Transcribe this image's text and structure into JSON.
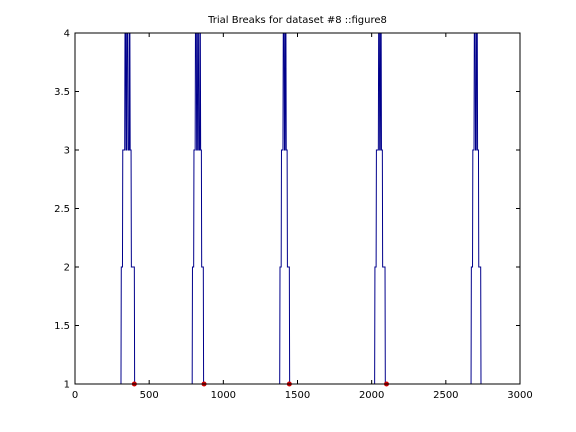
{
  "chart_data": {
    "type": "line",
    "title": "Trial Breaks for dataset #8 ::figure8",
    "xlabel": "",
    "ylabel": "",
    "xlim": [
      0,
      3000
    ],
    "ylim": [
      1,
      4
    ],
    "xticks": [
      0,
      500,
      1000,
      1500,
      2000,
      2500,
      3000
    ],
    "yticks": [
      1,
      1.5,
      2,
      2.5,
      3,
      3.5,
      4
    ],
    "xtick_labels": [
      "0",
      "500",
      "1000",
      "1500",
      "2000",
      "2500",
      "3000"
    ],
    "ytick_labels": [
      "1",
      "1.5",
      "2",
      "2.5",
      "3",
      "3.5",
      "4"
    ],
    "grid": false,
    "series": [
      {
        "color": "#00008b",
        "style": "step",
        "points": [
          [
            310,
            1
          ],
          [
            312,
            2
          ],
          [
            320,
            2
          ],
          [
            322,
            3
          ],
          [
            335,
            3
          ],
          [
            337,
            4
          ],
          [
            342,
            4
          ],
          [
            344,
            3
          ],
          [
            348,
            3
          ],
          [
            350,
            4
          ],
          [
            356,
            4
          ],
          [
            358,
            3
          ],
          [
            365,
            3
          ],
          [
            367,
            4
          ],
          [
            370,
            4
          ],
          [
            372,
            3
          ],
          [
            378,
            3
          ],
          [
            380,
            2
          ],
          [
            400,
            2
          ],
          [
            402,
            1
          ],
          [
            790,
            1
          ],
          [
            792,
            2
          ],
          [
            800,
            2
          ],
          [
            802,
            3
          ],
          [
            810,
            3
          ],
          [
            812,
            4
          ],
          [
            818,
            4
          ],
          [
            820,
            3
          ],
          [
            825,
            3
          ],
          [
            827,
            4
          ],
          [
            832,
            4
          ],
          [
            834,
            3
          ],
          [
            840,
            3
          ],
          [
            842,
            4
          ],
          [
            845,
            4
          ],
          [
            847,
            3
          ],
          [
            852,
            3
          ],
          [
            854,
            2
          ],
          [
            865,
            2
          ],
          [
            867,
            1
          ],
          [
            1380,
            1
          ],
          [
            1382,
            2
          ],
          [
            1390,
            2
          ],
          [
            1392,
            3
          ],
          [
            1402,
            3
          ],
          [
            1404,
            4
          ],
          [
            1410,
            4
          ],
          [
            1412,
            3
          ],
          [
            1416,
            3
          ],
          [
            1418,
            4
          ],
          [
            1422,
            4
          ],
          [
            1424,
            3
          ],
          [
            1430,
            3
          ],
          [
            1432,
            2
          ],
          [
            1445,
            2
          ],
          [
            1447,
            1
          ],
          [
            2020,
            1
          ],
          [
            2022,
            2
          ],
          [
            2030,
            2
          ],
          [
            2032,
            3
          ],
          [
            2045,
            3
          ],
          [
            2047,
            4
          ],
          [
            2052,
            4
          ],
          [
            2054,
            3
          ],
          [
            2058,
            3
          ],
          [
            2060,
            4
          ],
          [
            2064,
            4
          ],
          [
            2066,
            3
          ],
          [
            2072,
            3
          ],
          [
            2074,
            2
          ],
          [
            2090,
            2
          ],
          [
            2092,
            1
          ],
          [
            2670,
            1
          ],
          [
            2672,
            2
          ],
          [
            2680,
            2
          ],
          [
            2682,
            3
          ],
          [
            2690,
            3
          ],
          [
            2692,
            4
          ],
          [
            2698,
            4
          ],
          [
            2700,
            3
          ],
          [
            2705,
            3
          ],
          [
            2707,
            4
          ],
          [
            2712,
            4
          ],
          [
            2714,
            3
          ],
          [
            2720,
            3
          ],
          [
            2722,
            2
          ],
          [
            2735,
            2
          ],
          [
            2737,
            1
          ],
          [
            2750,
            1
          ]
        ]
      }
    ],
    "markers": {
      "color": "#cc0000",
      "x": [
        400,
        870,
        1445,
        2100
      ],
      "y": [
        1,
        1,
        1,
        1
      ]
    }
  }
}
